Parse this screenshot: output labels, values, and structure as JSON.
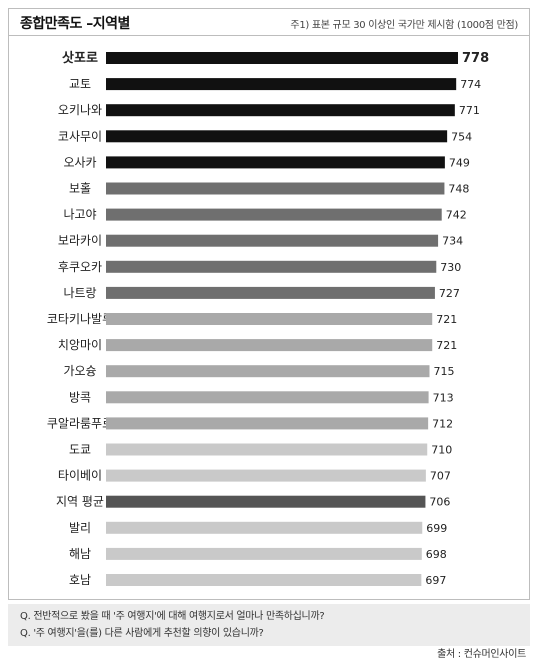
{
  "header": {
    "title": "종합만족도 –지역별",
    "note": "주1) 표본 규모 30 이상인 국가만 제시함 (1000점 만점)"
  },
  "chart_data": {
    "type": "bar",
    "orientation": "horizontal",
    "categories": [
      "삿포로",
      "교토",
      "오키나와",
      "코사무이",
      "오사카",
      "보홀",
      "나고야",
      "보라카이",
      "후쿠오카",
      "나트랑",
      "코타키나발루",
      "치앙마이",
      "가오슝",
      "방콕",
      "쿠알라룸푸르",
      "도쿄",
      "타이베이",
      "지역 평균",
      "발리",
      "해남",
      "호남"
    ],
    "values": [
      778,
      774,
      771,
      754,
      749,
      748,
      742,
      734,
      730,
      727,
      721,
      721,
      715,
      713,
      712,
      710,
      707,
      706,
      699,
      698,
      697
    ],
    "value_labels": [
      "778",
      "774",
      "771",
      "754",
      "749",
      "748",
      "742",
      "734",
      "730",
      "727",
      "721",
      "721",
      "715",
      "713",
      "712",
      "710",
      "707",
      "706",
      "699",
      "698",
      "697"
    ],
    "bar_colors": [
      "#111111",
      "#111111",
      "#111111",
      "#111111",
      "#111111",
      "#6f6f6f",
      "#6f6f6f",
      "#6f6f6f",
      "#6f6f6f",
      "#6f6f6f",
      "#a9a9a9",
      "#a9a9a9",
      "#a9a9a9",
      "#a9a9a9",
      "#a9a9a9",
      "#c9c9c9",
      "#c9c9c9",
      "#555555",
      "#c9c9c9",
      "#c9c9c9",
      "#c9c9c9"
    ],
    "highlight_index": 0,
    "grid": false
  },
  "footer": {
    "questions": [
      "Q. 전반적으로 봤을 때 '주 여행지'에 대해 여행지로서 얼마나 만족하십니까?",
      "Q. '주 여행지'을(를) 다른 사람에게 추천할 의향이 있습니까?"
    ],
    "source": "출처 : 컨슈머인사이트"
  }
}
